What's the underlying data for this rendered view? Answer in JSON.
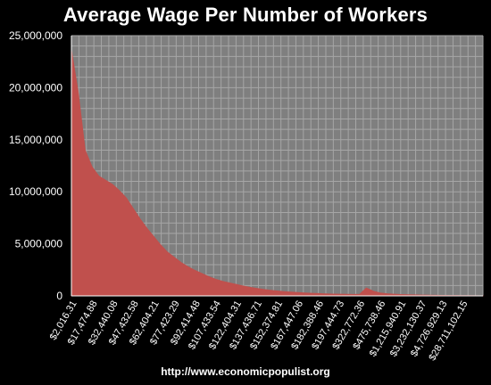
{
  "chart_data": {
    "type": "area",
    "title": "Average Wage Per Number of Workers",
    "xlabel": "",
    "ylabel": "",
    "ylim": [
      0,
      25000000
    ],
    "yticks": [
      "0",
      "5,000,000",
      "10,000,000",
      "15,000,000",
      "20,000,000",
      "25,000,000"
    ],
    "grid": true,
    "legend": "none",
    "x_tick_labels": [
      "$2,016.31",
      "$17,474.88",
      "$32,440.08",
      "$47,432.58",
      "$62,404.21",
      "$77,423.29",
      "$92,414.48",
      "$107,433.54",
      "$122,404.31",
      "$137,436.71",
      "$152,374.81",
      "$167,447.06",
      "$182,388.46",
      "$197,444.73",
      "$322,772.36",
      "$475,738.46",
      "$1,215,940.91",
      "$3,232,130.37",
      "$4,726,929.13",
      "$28,711,102.15"
    ],
    "x_label_categories": [
      0,
      3,
      6,
      9,
      12,
      15,
      18,
      21,
      24,
      27,
      30,
      33,
      36,
      39,
      42,
      45,
      48,
      51,
      54,
      57
    ],
    "n_categories": 61,
    "values": [
      23600000,
      19500000,
      14000000,
      12400000,
      11500000,
      11100000,
      10700000,
      10100000,
      9400000,
      8400000,
      7400000,
      6500000,
      5700000,
      4900000,
      4200000,
      3700000,
      3200000,
      2800000,
      2450000,
      2150000,
      1850000,
      1600000,
      1400000,
      1250000,
      1100000,
      950000,
      830000,
      720000,
      620000,
      540000,
      470000,
      410000,
      360000,
      320000,
      280000,
      250000,
      220000,
      195000,
      175000,
      160000,
      150000,
      140000,
      140000,
      750000,
      450000,
      280000,
      200000,
      160000,
      130000,
      110000,
      95000,
      80000,
      65000,
      55000,
      45000,
      35000,
      28000,
      22000,
      16000,
      10000,
      5000
    ],
    "series_color": "#c0504d"
  },
  "footer": {
    "source_text": "http://www.economicpopulist.org"
  }
}
